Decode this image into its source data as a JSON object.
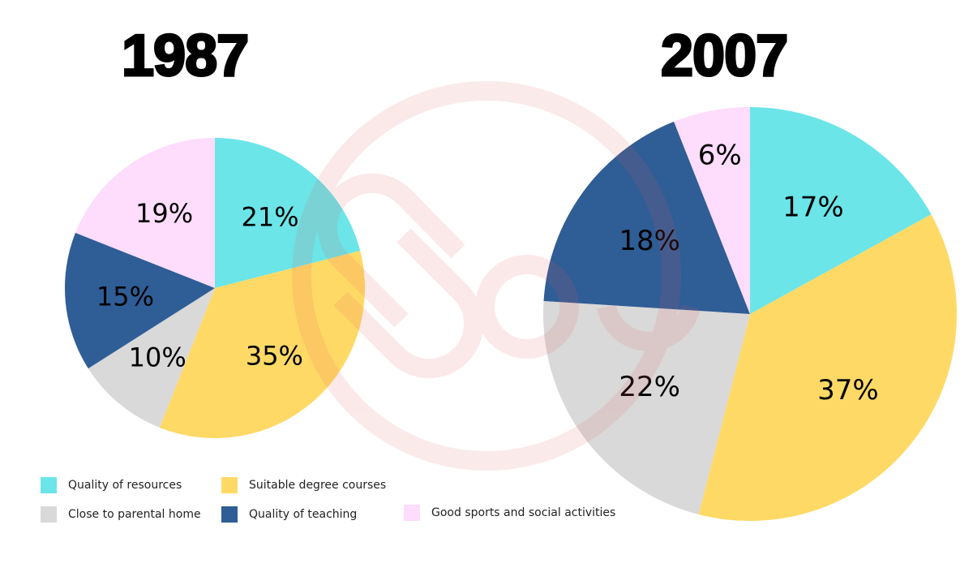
{
  "chart_data": [
    {
      "type": "pie",
      "title": "1987",
      "categories": [
        "Quality of resources",
        "Suitable degree courses",
        "Close to parental home",
        "Quality of teaching",
        "Good sports and social activities"
      ],
      "values": [
        21,
        35,
        10,
        15,
        19
      ],
      "labels": [
        "21%",
        "35%",
        "10%",
        "15%",
        "19%"
      ]
    },
    {
      "type": "pie",
      "title": "2007",
      "categories": [
        "Quality of resources",
        "Suitable degree courses",
        "Close to parental home",
        "Quality of teaching",
        "Good sports and social activities"
      ],
      "values": [
        17,
        37,
        22,
        18,
        6
      ],
      "labels": [
        "17%",
        "37%",
        "22%",
        "18%",
        "6%"
      ]
    }
  ],
  "colors": [
    "#6be5e8",
    "#ffd966",
    "#d9d9d9",
    "#2f5d96",
    "#fddcfc"
  ],
  "legend": [
    {
      "label": "Quality of resources",
      "color": "#6be5e8"
    },
    {
      "label": "Suitable degree courses",
      "color": "#ffd966"
    },
    {
      "label": "Close to parental home",
      "color": "#d9d9d9"
    },
    {
      "label": "Quality of teaching",
      "color": "#2f5d96"
    },
    {
      "label": "Good sports and social activities",
      "color": "#fddcfc"
    }
  ],
  "legend_position": "bottom-left"
}
